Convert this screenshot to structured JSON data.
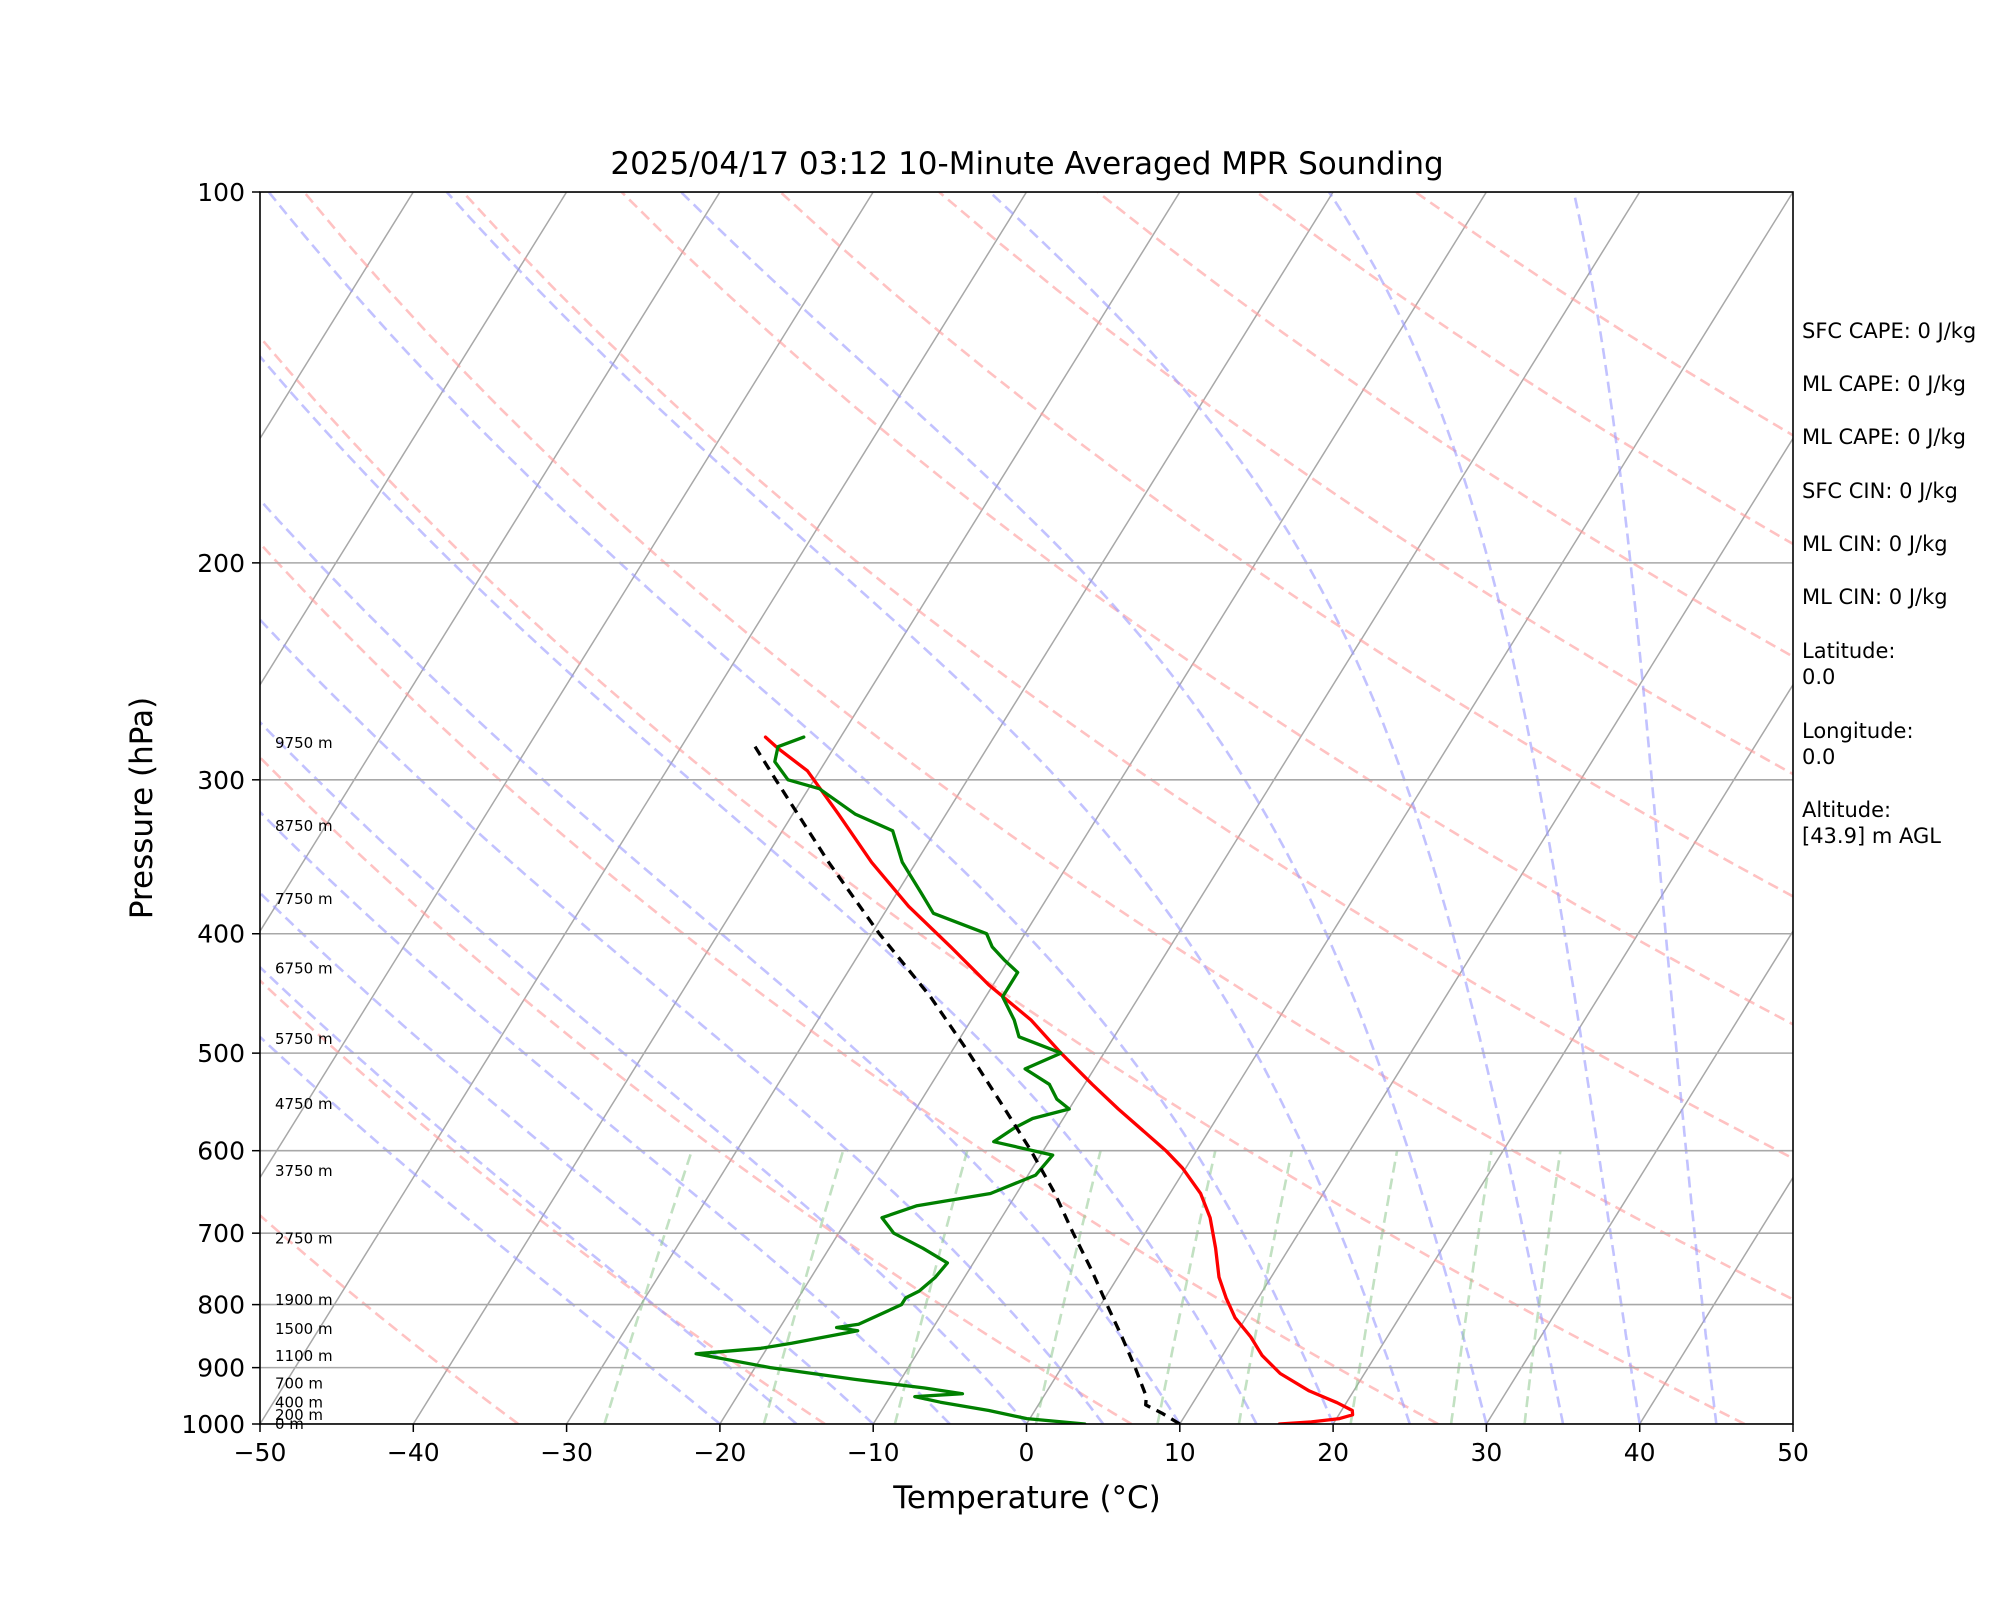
{
  "chart_data": {
    "type": "line",
    "chart_kind": "skew-t log-p diagram",
    "title": "2025/04/17 03:12 10-Minute Averaged MPR Sounding",
    "xlabel": "Temperature (°C)",
    "ylabel": "Pressure (hPa)",
    "xlim": [
      -50,
      50
    ],
    "ylim": [
      1000,
      100
    ],
    "y_scale": "log",
    "x_ticks": [
      "−50",
      "−40",
      "−30",
      "−20",
      "−10",
      "0",
      "10",
      "20",
      "30",
      "40",
      "50"
    ],
    "y_ticks": [
      "100",
      "200",
      "300",
      "400",
      "500",
      "600",
      "700",
      "800",
      "900",
      "1000"
    ],
    "grid": true,
    "height_labels": [
      {
        "text": "9750 m",
        "p": 280
      },
      {
        "text": "8750 m",
        "p": 327
      },
      {
        "text": "7750 m",
        "p": 375
      },
      {
        "text": "6750 m",
        "p": 427
      },
      {
        "text": "5750 m",
        "p": 487
      },
      {
        "text": "4750 m",
        "p": 550
      },
      {
        "text": "3750 m",
        "p": 623
      },
      {
        "text": "2750 m",
        "p": 707
      },
      {
        "text": "1900 m",
        "p": 793
      },
      {
        "text": "1500 m",
        "p": 837
      },
      {
        "text": "1100 m",
        "p": 881
      },
      {
        "text": "700 m",
        "p": 927
      },
      {
        "text": "400 m",
        "p": 961
      },
      {
        "text": "200 m",
        "p": 983
      },
      {
        "text": "0 m",
        "p": 1000
      }
    ],
    "series": [
      {
        "role": "temperature",
        "color": "#ff0000",
        "style": "solid",
        "points": [
          [
            1000,
            16.5
          ],
          [
            996,
            18.5
          ],
          [
            990,
            20.2
          ],
          [
            983,
            20.9
          ],
          [
            975,
            20.7
          ],
          [
            961,
            19.4
          ],
          [
            940,
            17.1
          ],
          [
            910,
            14.5
          ],
          [
            880,
            12.6
          ],
          [
            850,
            11.1
          ],
          [
            820,
            9.3
          ],
          [
            790,
            7.9
          ],
          [
            760,
            6.6
          ],
          [
            720,
            5.2
          ],
          [
            680,
            3.6
          ],
          [
            650,
            2.0
          ],
          [
            620,
            -0.2
          ],
          [
            600,
            -2.0
          ],
          [
            578,
            -4.3
          ],
          [
            555,
            -6.8
          ],
          [
            530,
            -9.5
          ],
          [
            500,
            -12.8
          ],
          [
            470,
            -16.1
          ],
          [
            440,
            -20.3
          ],
          [
            410,
            -24.3
          ],
          [
            380,
            -28.7
          ],
          [
            350,
            -32.9
          ],
          [
            320,
            -37.0
          ],
          [
            295,
            -40.8
          ],
          [
            283,
            -43.6
          ],
          [
            277,
            -44.9
          ]
        ]
      },
      {
        "role": "dewpoint",
        "color": "#008000",
        "style": "solid",
        "points": [
          [
            1000,
            3.8
          ],
          [
            990,
            -0.2
          ],
          [
            975,
            -3.0
          ],
          [
            960,
            -6.5
          ],
          [
            950,
            -8.4
          ],
          [
            945,
            -5.4
          ],
          [
            935,
            -8.1
          ],
          [
            920,
            -13.0
          ],
          [
            900,
            -19.0
          ],
          [
            877,
            -24.4
          ],
          [
            868,
            -20.4
          ],
          [
            860,
            -18.6
          ],
          [
            840,
            -14.8
          ],
          [
            835,
            -16.3
          ],
          [
            830,
            -15.0
          ],
          [
            815,
            -14.0
          ],
          [
            800,
            -13.0
          ],
          [
            790,
            -13.0
          ],
          [
            780,
            -12.4
          ],
          [
            760,
            -11.9
          ],
          [
            740,
            -11.7
          ],
          [
            720,
            -13.9
          ],
          [
            700,
            -16.4
          ],
          [
            680,
            -17.8
          ],
          [
            665,
            -16.0
          ],
          [
            650,
            -11.7
          ],
          [
            628,
            -9.5
          ],
          [
            605,
            -9.2
          ],
          [
            590,
            -13.6
          ],
          [
            575,
            -12.8
          ],
          [
            565,
            -12.0
          ],
          [
            555,
            -10.0
          ],
          [
            545,
            -11.2
          ],
          [
            530,
            -12.3
          ],
          [
            515,
            -14.5
          ],
          [
            500,
            -12.8
          ],
          [
            485,
            -16.2
          ],
          [
            470,
            -17.2
          ],
          [
            450,
            -18.9
          ],
          [
            430,
            -18.9
          ],
          [
            420,
            -20.3
          ],
          [
            410,
            -21.6
          ],
          [
            400,
            -22.5
          ],
          [
            385,
            -26.8
          ],
          [
            370,
            -28.5
          ],
          [
            350,
            -30.9
          ],
          [
            330,
            -32.8
          ],
          [
            320,
            -35.9
          ],
          [
            305,
            -39.3
          ],
          [
            300,
            -41.7
          ],
          [
            290,
            -43.3
          ],
          [
            282,
            -43.7
          ],
          [
            277,
            -42.4
          ]
        ]
      },
      {
        "role": "parcel profile",
        "color": "#000000",
        "style": "dashed",
        "points": [
          [
            1000,
            10.0
          ],
          [
            980,
            8.4
          ],
          [
            965,
            7.0
          ],
          [
            950,
            6.7
          ],
          [
            900,
            4.8
          ],
          [
            850,
            2.7
          ],
          [
            800,
            0.4
          ],
          [
            750,
            -2.0
          ],
          [
            700,
            -4.7
          ],
          [
            650,
            -7.5
          ],
          [
            600,
            -10.8
          ],
          [
            550,
            -14.6
          ],
          [
            500,
            -18.8
          ],
          [
            450,
            -23.6
          ],
          [
            400,
            -29.5
          ],
          [
            350,
            -35.7
          ],
          [
            300,
            -42.5
          ],
          [
            280,
            -45.5
          ]
        ]
      }
    ],
    "reference_lines": {
      "dry_adiabats_theta_K": [
        220,
        240,
        260,
        280,
        300,
        320,
        340,
        360,
        380,
        400,
        420,
        440,
        460,
        480
      ],
      "moist_adiabats_start_C": [
        -20,
        -15,
        -10,
        -5,
        0,
        5,
        10,
        15,
        20,
        25,
        30,
        35,
        40,
        45
      ],
      "mixing_ratio_lines": [
        0.4,
        1,
        2,
        4,
        7,
        10,
        16,
        24,
        32
      ]
    },
    "info_panel": [
      "SFC CAPE: 0 J/kg",
      "ML CAPE: 0 J/kg",
      "ML CAPE: 0 J/kg",
      "SFC CIN: 0 J/kg",
      "ML CIN: 0 J/kg",
      "ML CIN: 0 J/kg",
      "Latitude:\n0.0",
      "Longitude:\n0.0",
      "Altitude:\n[43.9] m AGL"
    ]
  }
}
